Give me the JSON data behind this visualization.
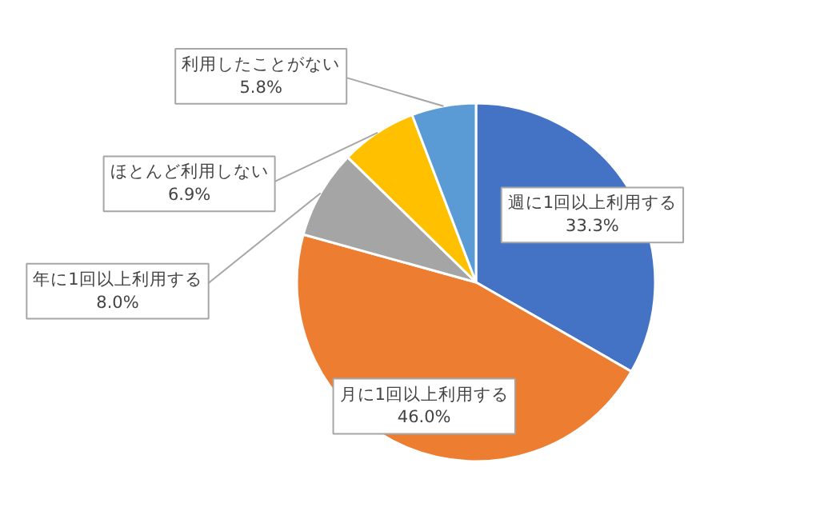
{
  "chart_data": {
    "type": "pie",
    "categories": [
      "週に1回以上利用する",
      "月に1回以上利用する",
      "年に1回以上利用する",
      "ほとんど利用しない",
      "利用したことがない"
    ],
    "values": [
      33.3,
      46.0,
      8.0,
      6.9,
      5.8
    ],
    "colors": [
      "#4472c4",
      "#ed7d31",
      "#a5a5a5",
      "#ffc000",
      "#5b9bd5"
    ],
    "value_labels": [
      "33.3%",
      "46.0%",
      "8.0%",
      "6.9%",
      "5.8%"
    ]
  }
}
